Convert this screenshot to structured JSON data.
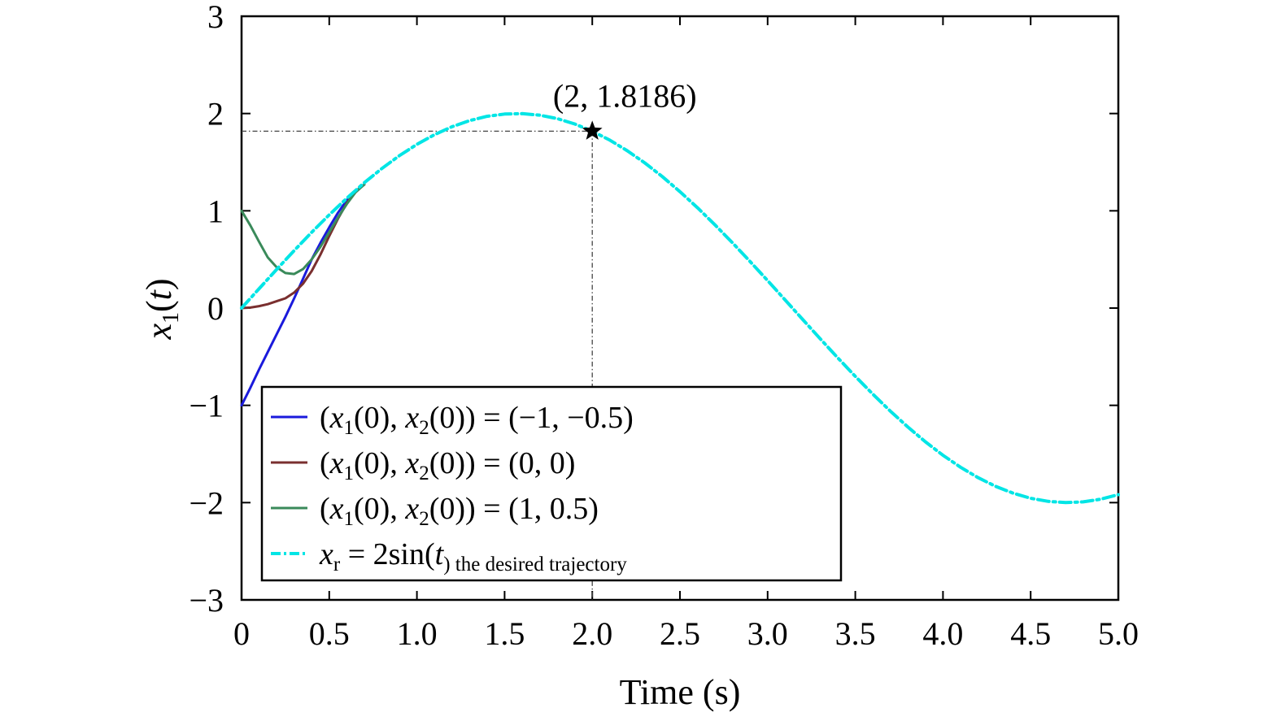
{
  "chart_data": {
    "type": "line",
    "title": "",
    "xlabel": "Time (s)",
    "ylabel_main": "x",
    "ylabel_sub": "1",
    "ylabel_arg": "t",
    "xlim": [
      0,
      5
    ],
    "ylim": [
      -3,
      3
    ],
    "xticks": [
      0,
      0.5,
      1.0,
      1.5,
      2.0,
      2.5,
      3.0,
      3.5,
      4.0,
      4.5,
      5.0
    ],
    "xtick_labels": [
      "0",
      "0.5",
      "1.0",
      "1.5",
      "2.0",
      "2.5",
      "3.0",
      "3.5",
      "4.0",
      "4.5",
      "5.0"
    ],
    "yticks": [
      -3,
      -2,
      -1,
      0,
      1,
      2,
      3
    ],
    "ytick_labels": [
      "−3",
      "−2",
      "−1",
      "0",
      "1",
      "2",
      "3"
    ],
    "grid": false,
    "legend_position": "bottom-left",
    "annotation": {
      "x": 2,
      "y": 1.8186,
      "marker": "star",
      "text": "(2, 1.8186)"
    },
    "series": [
      {
        "legend_parts": [
          "(",
          "x",
          "1",
          "(0), ",
          "x",
          "2",
          "(0)) = (−1, −0.5)"
        ],
        "color": "#1a1adc",
        "dash": "solid",
        "x": [
          0,
          0.05,
          0.1,
          0.15,
          0.2,
          0.25,
          0.3,
          0.35,
          0.4,
          0.45,
          0.5,
          0.55,
          0.6,
          0.65,
          0.7
        ],
        "y": [
          -1,
          -0.82,
          -0.63,
          -0.45,
          -0.27,
          -0.09,
          0.1,
          0.3,
          0.5,
          0.67,
          0.83,
          0.98,
          1.11,
          1.2,
          1.27
        ]
      },
      {
        "legend_parts": [
          "(",
          "x",
          "1",
          "(0), ",
          "x",
          "2",
          "(0)) = (0, 0)"
        ],
        "color": "#7a2f2f",
        "dash": "solid",
        "x": [
          0,
          0.05,
          0.1,
          0.15,
          0.2,
          0.25,
          0.3,
          0.35,
          0.4,
          0.45,
          0.5,
          0.55,
          0.6,
          0.65,
          0.7
        ],
        "y": [
          0,
          0.005,
          0.02,
          0.04,
          0.07,
          0.1,
          0.16,
          0.25,
          0.38,
          0.55,
          0.74,
          0.92,
          1.08,
          1.2,
          1.27
        ]
      },
      {
        "legend_parts": [
          "(",
          "x",
          "1",
          "(0), ",
          "x",
          "2",
          "(0)) = (1, 0.5)"
        ],
        "color": "#3a8a5a",
        "dash": "solid",
        "x": [
          0,
          0.05,
          0.1,
          0.15,
          0.2,
          0.25,
          0.3,
          0.35,
          0.4,
          0.45,
          0.5,
          0.55,
          0.6,
          0.65,
          0.7
        ],
        "y": [
          1,
          0.85,
          0.68,
          0.52,
          0.42,
          0.36,
          0.35,
          0.4,
          0.5,
          0.63,
          0.78,
          0.93,
          1.07,
          1.19,
          1.27
        ]
      },
      {
        "legend_parts": [
          "",
          "x",
          "r",
          " = 2sin(",
          "t",
          ") the desired trajectory"
        ],
        "color": "#00e5e5",
        "dash": "dashdot",
        "x": [
          0,
          0.1,
          0.2,
          0.3,
          0.4,
          0.5,
          0.6,
          0.7,
          0.8,
          0.9,
          1.0,
          1.1,
          1.2,
          1.3,
          1.4,
          1.5,
          1.6,
          1.7,
          1.8,
          1.9,
          2.0,
          2.1,
          2.2,
          2.3,
          2.4,
          2.5,
          2.6,
          2.7,
          2.8,
          2.9,
          3.0,
          3.1,
          3.2,
          3.3,
          3.4,
          3.5,
          3.6,
          3.7,
          3.8,
          3.9,
          4.0,
          4.1,
          4.2,
          4.3,
          4.4,
          4.5,
          4.6,
          4.7,
          4.8,
          4.9,
          5.0
        ],
        "y": [
          0,
          0.1997,
          0.3973,
          0.591,
          0.7788,
          0.9589,
          1.1293,
          1.2884,
          1.4347,
          1.5667,
          1.6829,
          1.7824,
          1.8641,
          1.9271,
          1.9709,
          1.995,
          1.9991,
          1.9833,
          1.9477,
          1.8926,
          1.8186,
          1.7264,
          1.617,
          1.4914,
          1.3509,
          1.1969,
          1.0311,
          0.8548,
          0.67,
          0.4785,
          0.2822,
          0.0831,
          -0.1167,
          -0.3155,
          -0.5111,
          -0.7016,
          -0.8851,
          -1.0596,
          -1.2235,
          -1.375,
          -1.5136,
          -1.6364,
          -1.7433,
          -1.8327,
          -1.9032,
          -1.9551,
          -1.9874,
          -1.9998,
          -1.9923,
          -1.9648,
          -1.9178
        ]
      }
    ]
  }
}
